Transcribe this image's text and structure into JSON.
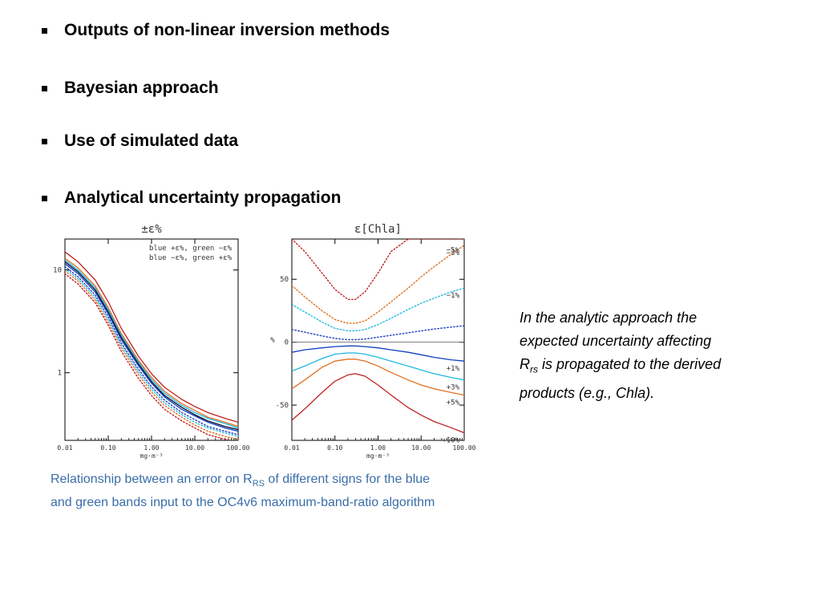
{
  "bullets": [
    "Outputs of non-linear inversion methods",
    "Bayesian approach",
    "Use of simulated data",
    "Analytical uncertainty propagation"
  ],
  "caption": {
    "line1_before": "Relationship between an error on R",
    "line1_sub": "RS",
    "line1_after": " of different signs for the blue",
    "line2": "and green bands input to the OC4v6 maximum-band-ratio algorithm"
  },
  "note": {
    "l1": "In the analytic approach the",
    "l2": "expected uncertainty affecting",
    "l3_main": "R",
    "l3_sub": "rs",
    "l3_rest": " is propagated to the derived",
    "l4": "products (e.g., Chla)."
  },
  "chart_data": [
    {
      "type": "line",
      "title": "±ε%",
      "xlabel": "mg·m⁻³",
      "x_scale": "log",
      "y_scale": "log",
      "x_ticks": [
        "0.01",
        "0.10",
        "1.00",
        "10.00",
        "100.00"
      ],
      "y_ticks": [
        "1",
        "10"
      ],
      "xlim": [
        0.01,
        100
      ],
      "ylim": [
        0.22,
        20
      ],
      "legend": [
        "blue +ε%, green −ε%",
        "blue −ε%, green +ε%"
      ],
      "legend_placement": "top-right",
      "x": [
        0.01,
        0.02,
        0.05,
        0.1,
        0.2,
        0.5,
        1,
        2,
        5,
        10,
        20,
        50,
        100
      ],
      "series": [
        {
          "color": "#c02020",
          "style": "solid",
          "values": [
            15.0,
            12.0,
            8.0,
            4.9,
            2.7,
            1.45,
            0.98,
            0.72,
            0.55,
            0.47,
            0.41,
            0.36,
            0.33
          ]
        },
        {
          "color": "#e07020",
          "style": "solid",
          "values": [
            13.0,
            10.5,
            7.0,
            4.3,
            2.4,
            1.32,
            0.9,
            0.66,
            0.5,
            0.43,
            0.37,
            0.33,
            0.3
          ]
        },
        {
          "color": "#20b8e0",
          "style": "solid",
          "values": [
            12.5,
            10.0,
            6.7,
            4.1,
            2.3,
            1.27,
            0.86,
            0.63,
            0.48,
            0.41,
            0.36,
            0.32,
            0.29
          ]
        },
        {
          "color": "#0a0a30",
          "style": "solid",
          "values": [
            12.0,
            9.6,
            6.4,
            3.9,
            2.2,
            1.22,
            0.82,
            0.6,
            0.46,
            0.39,
            0.34,
            0.3,
            0.28
          ]
        },
        {
          "color": "#1040c0",
          "style": "solid",
          "values": [
            11.5,
            9.2,
            6.1,
            3.75,
            2.1,
            1.17,
            0.79,
            0.58,
            0.44,
            0.38,
            0.33,
            0.29,
            0.27
          ]
        },
        {
          "color": "#2040c0",
          "style": "dotted",
          "values": [
            10.8,
            8.6,
            5.7,
            3.5,
            1.95,
            1.08,
            0.73,
            0.54,
            0.41,
            0.35,
            0.3,
            0.27,
            0.25
          ]
        },
        {
          "color": "#20b8e0",
          "style": "dotted",
          "values": [
            10.3,
            8.2,
            5.4,
            3.3,
            1.85,
            1.02,
            0.69,
            0.51,
            0.39,
            0.33,
            0.29,
            0.26,
            0.24
          ]
        },
        {
          "color": "#e07020",
          "style": "dotted",
          "values": [
            9.8,
            7.8,
            5.1,
            3.1,
            1.75,
            0.96,
            0.65,
            0.48,
            0.37,
            0.31,
            0.27,
            0.24,
            0.225
          ]
        },
        {
          "color": "#c02020",
          "style": "dotted",
          "values": [
            9.2,
            7.3,
            4.8,
            2.9,
            1.62,
            0.88,
            0.6,
            0.44,
            0.34,
            0.29,
            0.25,
            0.225,
            0.21
          ]
        }
      ]
    },
    {
      "type": "line",
      "title": "ε[Chla]",
      "xlabel": "mg·m⁻³",
      "ylabel": "%",
      "x_scale": "log",
      "x_ticks": [
        "0.01",
        "0.10",
        "1.00",
        "10.00",
        "100.00"
      ],
      "y_ticks": [
        "-50",
        "0",
        "50"
      ],
      "xlim": [
        0.01,
        100
      ],
      "ylim": [
        -78,
        82
      ],
      "x": [
        0.01,
        0.02,
        0.05,
        0.1,
        0.2,
        0.3,
        0.5,
        1,
        2,
        5,
        10,
        20,
        50,
        100
      ],
      "series": [
        {
          "name": "−5%",
          "color": "#c02020",
          "style": "dotted",
          "values": [
            82,
            72,
            55,
            42,
            34,
            34,
            40,
            55,
            72,
            82,
            82,
            82,
            82,
            82
          ]
        },
        {
          "name": "−3%",
          "color": "#e07020",
          "style": "dotted",
          "values": [
            45,
            36,
            25,
            18,
            15,
            15,
            17,
            24,
            32,
            43,
            52,
            60,
            70,
            77
          ]
        },
        {
          "name": "−1%",
          "color": "#20b8e0",
          "style": "dotted",
          "values": [
            30,
            24,
            16,
            11,
            9,
            9,
            10,
            14,
            19,
            26,
            31,
            35,
            40,
            43
          ]
        },
        {
          "name": "",
          "color": "#2040c0",
          "style": "dotted",
          "values": [
            10,
            8,
            5,
            3,
            2,
            2,
            2.5,
            4,
            5.5,
            7.5,
            9,
            10.5,
            12,
            13
          ]
        },
        {
          "name": "+1%",
          "color": "#1040c0",
          "style": "solid",
          "values": [
            -8,
            -6,
            -4.5,
            -3.5,
            -3,
            -3,
            -3.5,
            -4.5,
            -6,
            -8,
            -10,
            -12,
            -14,
            -15
          ]
        },
        {
          "name": "+3%",
          "color": "#20b8e0",
          "style": "solid",
          "values": [
            -23,
            -19,
            -13,
            -9.5,
            -8.5,
            -8.5,
            -9.5,
            -12,
            -15,
            -19,
            -22,
            -25,
            -28,
            -30
          ]
        },
        {
          "name": "+5%",
          "color": "#e07020",
          "style": "solid",
          "values": [
            -37,
            -30,
            -20,
            -15,
            -13.5,
            -13.5,
            -15,
            -19,
            -24,
            -30,
            -34,
            -37,
            -40,
            -42
          ]
        },
        {
          "name": "+10%",
          "color": "#c02020",
          "style": "solid",
          "values": [
            -62,
            -53,
            -40,
            -31,
            -26,
            -25,
            -27,
            -34,
            -42,
            -52,
            -58,
            -63,
            -68,
            -72
          ]
        }
      ]
    }
  ]
}
